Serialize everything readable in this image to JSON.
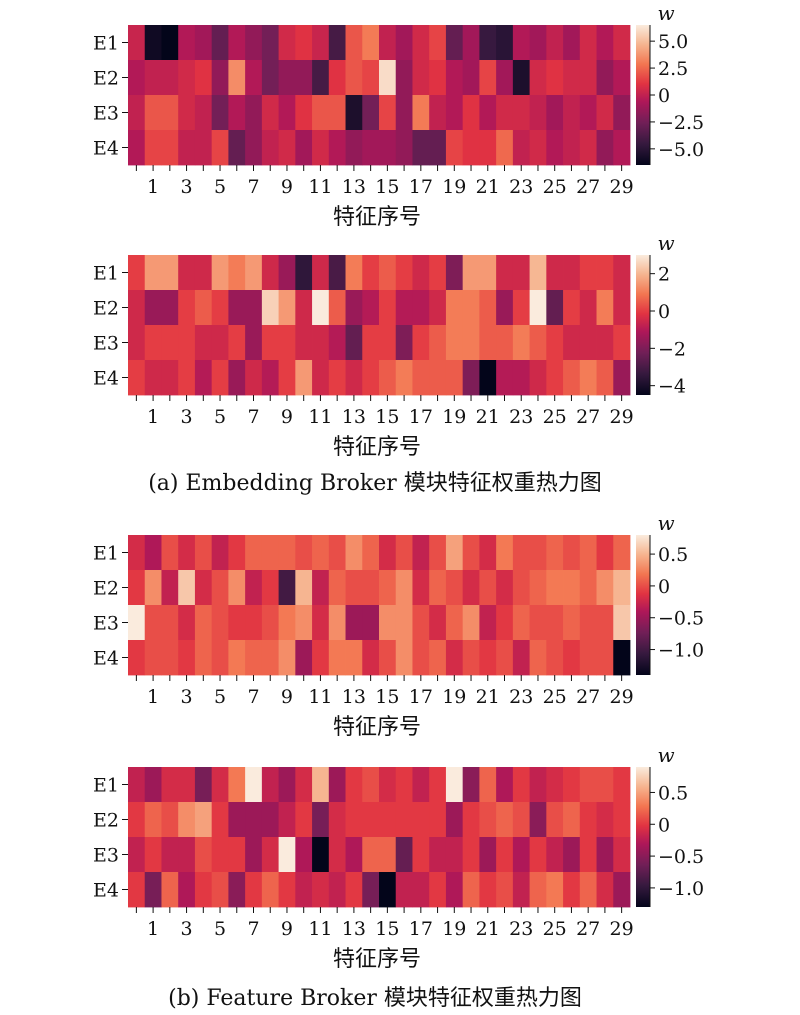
{
  "captions": [
    "(a) Embedding Broker 模块特征权重热力图",
    "(b) Feature Broker 模块特征权重热力图"
  ],
  "chart_data": [
    {
      "type": "heatmap",
      "panel": "a-top",
      "rows": [
        "E1",
        "E2",
        "E3",
        "E4"
      ],
      "x_tick_labels": [
        "1",
        "3",
        "5",
        "7",
        "9",
        "11",
        "13",
        "15",
        "17",
        "19",
        "21",
        "23",
        "25",
        "27",
        "29"
      ],
      "x_range": [
        0,
        29
      ],
      "xlabel": "特征序号",
      "colorbar_label": "w",
      "colorbar_ticks": [
        5.0,
        2.5,
        0,
        -2.5,
        -5.0
      ],
      "colorbar_tick_labels": [
        "5.0",
        "2.5",
        "0",
        "−2.5",
        "−5.0"
      ],
      "vmin": -6.5,
      "vmax": 6.5,
      "values": [
        [
          0.2,
          -6.0,
          -6.5,
          -0.5,
          -1.0,
          -3.0,
          -0.5,
          -1.5,
          -2.5,
          0.5,
          1.0,
          0.2,
          -4.0,
          2.0,
          3.0,
          0.0,
          -1.0,
          0.5,
          1.5,
          -3.0,
          -1.0,
          -4.5,
          -5.0,
          -0.5,
          -1.0,
          0.0,
          -1.0,
          0.5,
          -0.5,
          0.5
        ],
        [
          -0.5,
          0.0,
          0.0,
          0.5,
          1.0,
          -1.5,
          3.5,
          -0.5,
          -2.5,
          -1.5,
          -1.5,
          -4.0,
          1.0,
          2.0,
          1.5,
          6.0,
          -1.5,
          0.5,
          1.0,
          -0.5,
          -1.0,
          1.5,
          -1.0,
          -5.5,
          0.5,
          1.0,
          0.5,
          0.5,
          -1.5,
          -0.5
        ],
        [
          0.0,
          2.0,
          2.0,
          0.5,
          0.0,
          -2.5,
          -0.5,
          -1.5,
          0.5,
          -0.5,
          1.0,
          2.0,
          2.0,
          -5.5,
          -2.5,
          1.5,
          -1.5,
          3.0,
          0.0,
          -0.5,
          1.0,
          -0.5,
          0.5,
          0.5,
          0.0,
          -1.0,
          0.0,
          -0.5,
          0.5,
          -1.5
        ],
        [
          -0.5,
          1.5,
          1.5,
          0.0,
          0.0,
          1.5,
          -3.0,
          -1.5,
          0.0,
          0.5,
          -1.0,
          0.5,
          -0.5,
          -1.5,
          -1.0,
          -1.0,
          -1.5,
          -3.0,
          -3.0,
          1.5,
          1.0,
          1.0,
          2.5,
          0.0,
          0.5,
          -0.5,
          0.0,
          0.5,
          -1.5,
          -0.5
        ]
      ]
    },
    {
      "type": "heatmap",
      "panel": "a-bottom",
      "rows": [
        "E1",
        "E2",
        "E3",
        "E4"
      ],
      "x_tick_labels": [
        "1",
        "3",
        "5",
        "7",
        "9",
        "11",
        "13",
        "15",
        "17",
        "19",
        "21",
        "23",
        "25",
        "27",
        "29"
      ],
      "x_range": [
        0,
        29
      ],
      "xlabel": "特征序号",
      "colorbar_label": "w",
      "colorbar_ticks": [
        2,
        0,
        -2,
        -4
      ],
      "colorbar_tick_labels": [
        "2",
        "0",
        "−2",
        "−4"
      ],
      "vmin": -4.5,
      "vmax": 3.0,
      "values": [
        [
          0.0,
          1.5,
          1.5,
          -0.5,
          -0.5,
          1.5,
          1.0,
          1.5,
          -0.5,
          -1.5,
          -3.5,
          -0.5,
          -3.0,
          1.0,
          0.0,
          0.5,
          0.0,
          -0.5,
          0.0,
          -2.0,
          1.5,
          1.5,
          -0.5,
          -0.5,
          2.0,
          -0.5,
          -0.5,
          0.0,
          0.0,
          -0.5
        ],
        [
          -0.5,
          -1.5,
          -1.5,
          0.0,
          0.5,
          0.0,
          -1.5,
          -1.5,
          2.5,
          1.5,
          -0.5,
          3.0,
          0.5,
          -1.5,
          -1.0,
          0.0,
          -1.0,
          -1.0,
          -0.5,
          1.0,
          1.0,
          0.5,
          -1.5,
          0.0,
          3.0,
          -2.5,
          0.0,
          -0.5,
          1.0,
          -0.5
        ],
        [
          -0.5,
          0.0,
          0.0,
          0.0,
          -0.5,
          -0.5,
          0.0,
          -1.5,
          0.0,
          0.0,
          -0.5,
          -0.5,
          -1.0,
          -2.5,
          0.0,
          0.0,
          -2.0,
          0.0,
          0.5,
          1.0,
          1.0,
          0.5,
          0.5,
          1.0,
          0.5,
          0.0,
          -0.5,
          -0.5,
          -0.5,
          0.0
        ],
        [
          0.0,
          -0.5,
          -0.5,
          0.0,
          -1.0,
          0.0,
          -1.5,
          -0.5,
          -1.0,
          0.0,
          1.5,
          -0.5,
          0.0,
          -0.5,
          0.0,
          0.5,
          1.0,
          0.5,
          0.5,
          0.5,
          -2.0,
          -4.5,
          -1.0,
          -1.0,
          -0.5,
          0.0,
          0.5,
          1.0,
          0.5,
          -1.5
        ]
      ]
    },
    {
      "type": "heatmap",
      "panel": "b-top",
      "rows": [
        "E1",
        "E2",
        "E3",
        "E4"
      ],
      "x_tick_labels": [
        "1",
        "3",
        "5",
        "7",
        "9",
        "11",
        "13",
        "15",
        "17",
        "19",
        "21",
        "23",
        "25",
        "27",
        "29"
      ],
      "x_range": [
        0,
        29
      ],
      "xlabel": "特征序号",
      "colorbar_label": "w",
      "colorbar_ticks": [
        0.5,
        0,
        -0.5,
        -1.0
      ],
      "colorbar_tick_labels": [
        "0.5",
        "0",
        "−0.5",
        "−1.0"
      ],
      "vmin": -1.4,
      "vmax": 0.8,
      "values": [
        [
          -0.2,
          -0.4,
          0.0,
          -0.2,
          0.0,
          -0.3,
          -0.1,
          0.1,
          0.1,
          0.1,
          0.0,
          0.1,
          0.0,
          0.3,
          0.1,
          -0.2,
          0.0,
          -0.3,
          0.0,
          0.4,
          0.0,
          -0.2,
          0.2,
          0.0,
          0.0,
          0.1,
          0.0,
          0.1,
          -0.1,
          0.1
        ],
        [
          -0.1,
          0.3,
          -0.3,
          0.6,
          -0.2,
          0.0,
          0.3,
          -0.3,
          -0.1,
          -1.0,
          0.5,
          -0.3,
          0.1,
          0.0,
          0.0,
          0.1,
          0.3,
          -0.2,
          0.1,
          0.0,
          -0.2,
          0.0,
          -0.2,
          0.0,
          0.1,
          0.2,
          0.2,
          0.1,
          0.3,
          0.5
        ],
        [
          0.8,
          0.0,
          0.0,
          -0.2,
          0.1,
          0.0,
          -0.1,
          -0.1,
          0.0,
          0.2,
          0.3,
          -0.2,
          0.3,
          -0.5,
          -0.5,
          0.3,
          0.3,
          0.0,
          -0.2,
          0.1,
          0.3,
          -0.3,
          -0.1,
          0.1,
          0.0,
          0.0,
          0.1,
          0.0,
          0.0,
          0.6
        ],
        [
          -0.1,
          0.0,
          0.0,
          -0.1,
          0.1,
          0.0,
          0.2,
          0.1,
          0.1,
          0.3,
          -0.5,
          -0.1,
          0.2,
          0.2,
          -0.2,
          0.0,
          0.3,
          0.0,
          0.1,
          -0.2,
          0.0,
          -0.1,
          0.0,
          -0.3,
          0.1,
          0.0,
          -0.1,
          0.0,
          0.0,
          -1.4
        ]
      ]
    },
    {
      "type": "heatmap",
      "panel": "b-bottom",
      "rows": [
        "E1",
        "E2",
        "E3",
        "E4"
      ],
      "x_tick_labels": [
        "1",
        "3",
        "5",
        "7",
        "9",
        "11",
        "13",
        "15",
        "17",
        "19",
        "21",
        "23",
        "25",
        "27",
        "29"
      ],
      "x_range": [
        0,
        29
      ],
      "xlabel": "特征序号",
      "colorbar_label": "w",
      "colorbar_ticks": [
        0.5,
        0,
        -0.5,
        -1.0
      ],
      "colorbar_tick_labels": [
        "0.5",
        "0",
        "−0.5",
        "−1.0"
      ],
      "vmin": -1.3,
      "vmax": 0.9,
      "values": [
        [
          -0.2,
          -0.4,
          -0.1,
          -0.1,
          -0.6,
          -0.1,
          0.3,
          0.9,
          -0.2,
          -0.4,
          -0.1,
          0.6,
          -0.4,
          0.0,
          0.1,
          -0.1,
          0.0,
          -0.2,
          0.0,
          0.9,
          -0.5,
          0.2,
          -0.3,
          0.0,
          -0.2,
          -0.1,
          0.0,
          0.1,
          0.1,
          0.0
        ],
        [
          0.0,
          0.2,
          0.1,
          0.4,
          0.5,
          0.0,
          -0.4,
          -0.4,
          -0.4,
          -0.2,
          0.0,
          -0.6,
          -0.1,
          0.0,
          0.0,
          0.0,
          0.0,
          0.0,
          0.0,
          -0.4,
          0.0,
          0.1,
          0.2,
          0.1,
          -0.5,
          0.1,
          0.2,
          0.0,
          -0.1,
          0.0
        ],
        [
          -0.2,
          0.0,
          -0.2,
          -0.2,
          0.1,
          0.0,
          0.0,
          -0.4,
          -0.1,
          0.9,
          -0.3,
          -1.3,
          -0.1,
          -0.3,
          0.2,
          0.2,
          -0.7,
          0.0,
          -0.2,
          -0.2,
          0.0,
          -0.4,
          0.0,
          -0.3,
          0.0,
          -0.2,
          -0.4,
          0.0,
          -0.4,
          -0.1
        ],
        [
          0.0,
          -0.6,
          0.2,
          -0.3,
          0.0,
          0.1,
          -0.5,
          0.0,
          0.2,
          0.0,
          -0.2,
          -0.1,
          -0.2,
          0.0,
          -0.6,
          -1.3,
          -0.2,
          -0.2,
          0.0,
          -0.3,
          0.2,
          0.0,
          0.1,
          -0.2,
          0.2,
          0.3,
          0.0,
          0.2,
          -0.1,
          -0.4
        ]
      ]
    }
  ]
}
